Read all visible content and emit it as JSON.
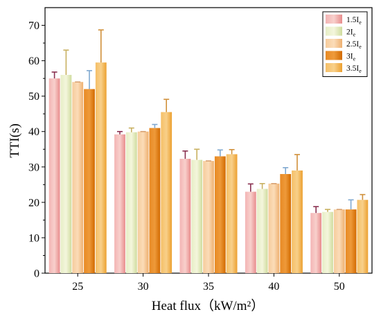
{
  "chart_data": {
    "type": "bar",
    "xlabel": "Heat flux（kW/m²）",
    "ylabel": "TTI(s)",
    "ylim": [
      0,
      75
    ],
    "yticks": [
      0,
      10,
      20,
      30,
      40,
      50,
      60,
      70
    ],
    "categories": [
      "25",
      "30",
      "35",
      "40",
      "50"
    ],
    "grid": false,
    "legend_position": "top-right",
    "series": [
      {
        "name": "1.5I",
        "sub": "e",
        "color": "#f0a0a0",
        "error_color": "#8a3050",
        "values": [
          55.0,
          39.2,
          32.3,
          23.0,
          17.0
        ],
        "errors": [
          1.8,
          0.8,
          2.2,
          2.2,
          1.8
        ]
      },
      {
        "name": "2I",
        "sub": "e",
        "color": "#dde8b8",
        "error_color": "#c8b060",
        "values": [
          56.0,
          39.8,
          32.0,
          23.8,
          17.3
        ],
        "errors": [
          7.0,
          1.2,
          3.0,
          1.5,
          0.7
        ]
      },
      {
        "name": "2.5I",
        "sub": "e",
        "color": "#f4c08a",
        "error_color": "#d8a070",
        "values": [
          54.0,
          40.0,
          31.7,
          25.3,
          18.0
        ],
        "errors": [
          0.0,
          0.0,
          0.0,
          0.0,
          0.0
        ]
      },
      {
        "name": "3I",
        "sub": "e",
        "color": "#e07a10",
        "error_color": "#7fa8d0",
        "values": [
          52.0,
          41.0,
          33.0,
          28.0,
          18.0
        ],
        "errors": [
          5.2,
          1.0,
          1.8,
          1.8,
          2.7
        ]
      },
      {
        "name": "3.5I",
        "sub": "e",
        "color": "#f2b04a",
        "error_color": "#d0903a",
        "values": [
          59.5,
          45.5,
          33.6,
          29.0,
          20.7
        ],
        "errors": [
          9.2,
          3.6,
          1.3,
          4.5,
          1.5
        ]
      }
    ]
  }
}
